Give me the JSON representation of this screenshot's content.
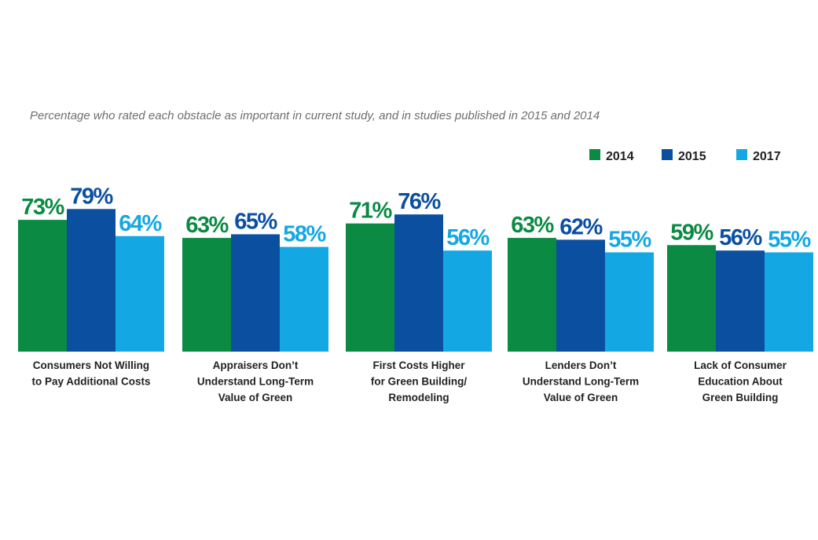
{
  "subtitle": "Percentage who rated each obstacle as important in current study, and in studies published in 2015 and 2014",
  "chart_data": {
    "type": "bar",
    "title": "",
    "subtitle": "Percentage who rated each obstacle as important in current study, and in studies published in 2015 and 2014",
    "xlabel": "",
    "ylabel": "",
    "ylim": [
      0,
      100
    ],
    "grid": false,
    "legend_position": "top-right",
    "categories": [
      [
        "Consumers Not Willing",
        "to Pay Additional Costs"
      ],
      [
        "Appraisers Don’t",
        "Understand Long-Term",
        "Value of Green"
      ],
      [
        "First Costs Higher",
        "for Green Building/",
        "Remodeling"
      ],
      [
        "Lenders Don’t",
        "Understand Long-Term",
        "Value of Green"
      ],
      [
        "Lack of Consumer",
        "Education About",
        "Green Building"
      ]
    ],
    "series": [
      {
        "name": "2014",
        "color": "#0a8a43",
        "values": [
          73,
          63,
          71,
          63,
          59
        ],
        "labels": [
          "73%",
          "63%",
          "71%",
          "63%",
          "59%"
        ]
      },
      {
        "name": "2015",
        "color": "#0b4fa1",
        "values": [
          79,
          65,
          76,
          62,
          56
        ],
        "labels": [
          "79%",
          "65%",
          "76%",
          "62%",
          "56%"
        ]
      },
      {
        "name": "2017",
        "color": "#13a8e4",
        "values": [
          64,
          58,
          56,
          55,
          55
        ],
        "labels": [
          "64%",
          "58%",
          "56%",
          "55%",
          "55%"
        ]
      }
    ]
  }
}
